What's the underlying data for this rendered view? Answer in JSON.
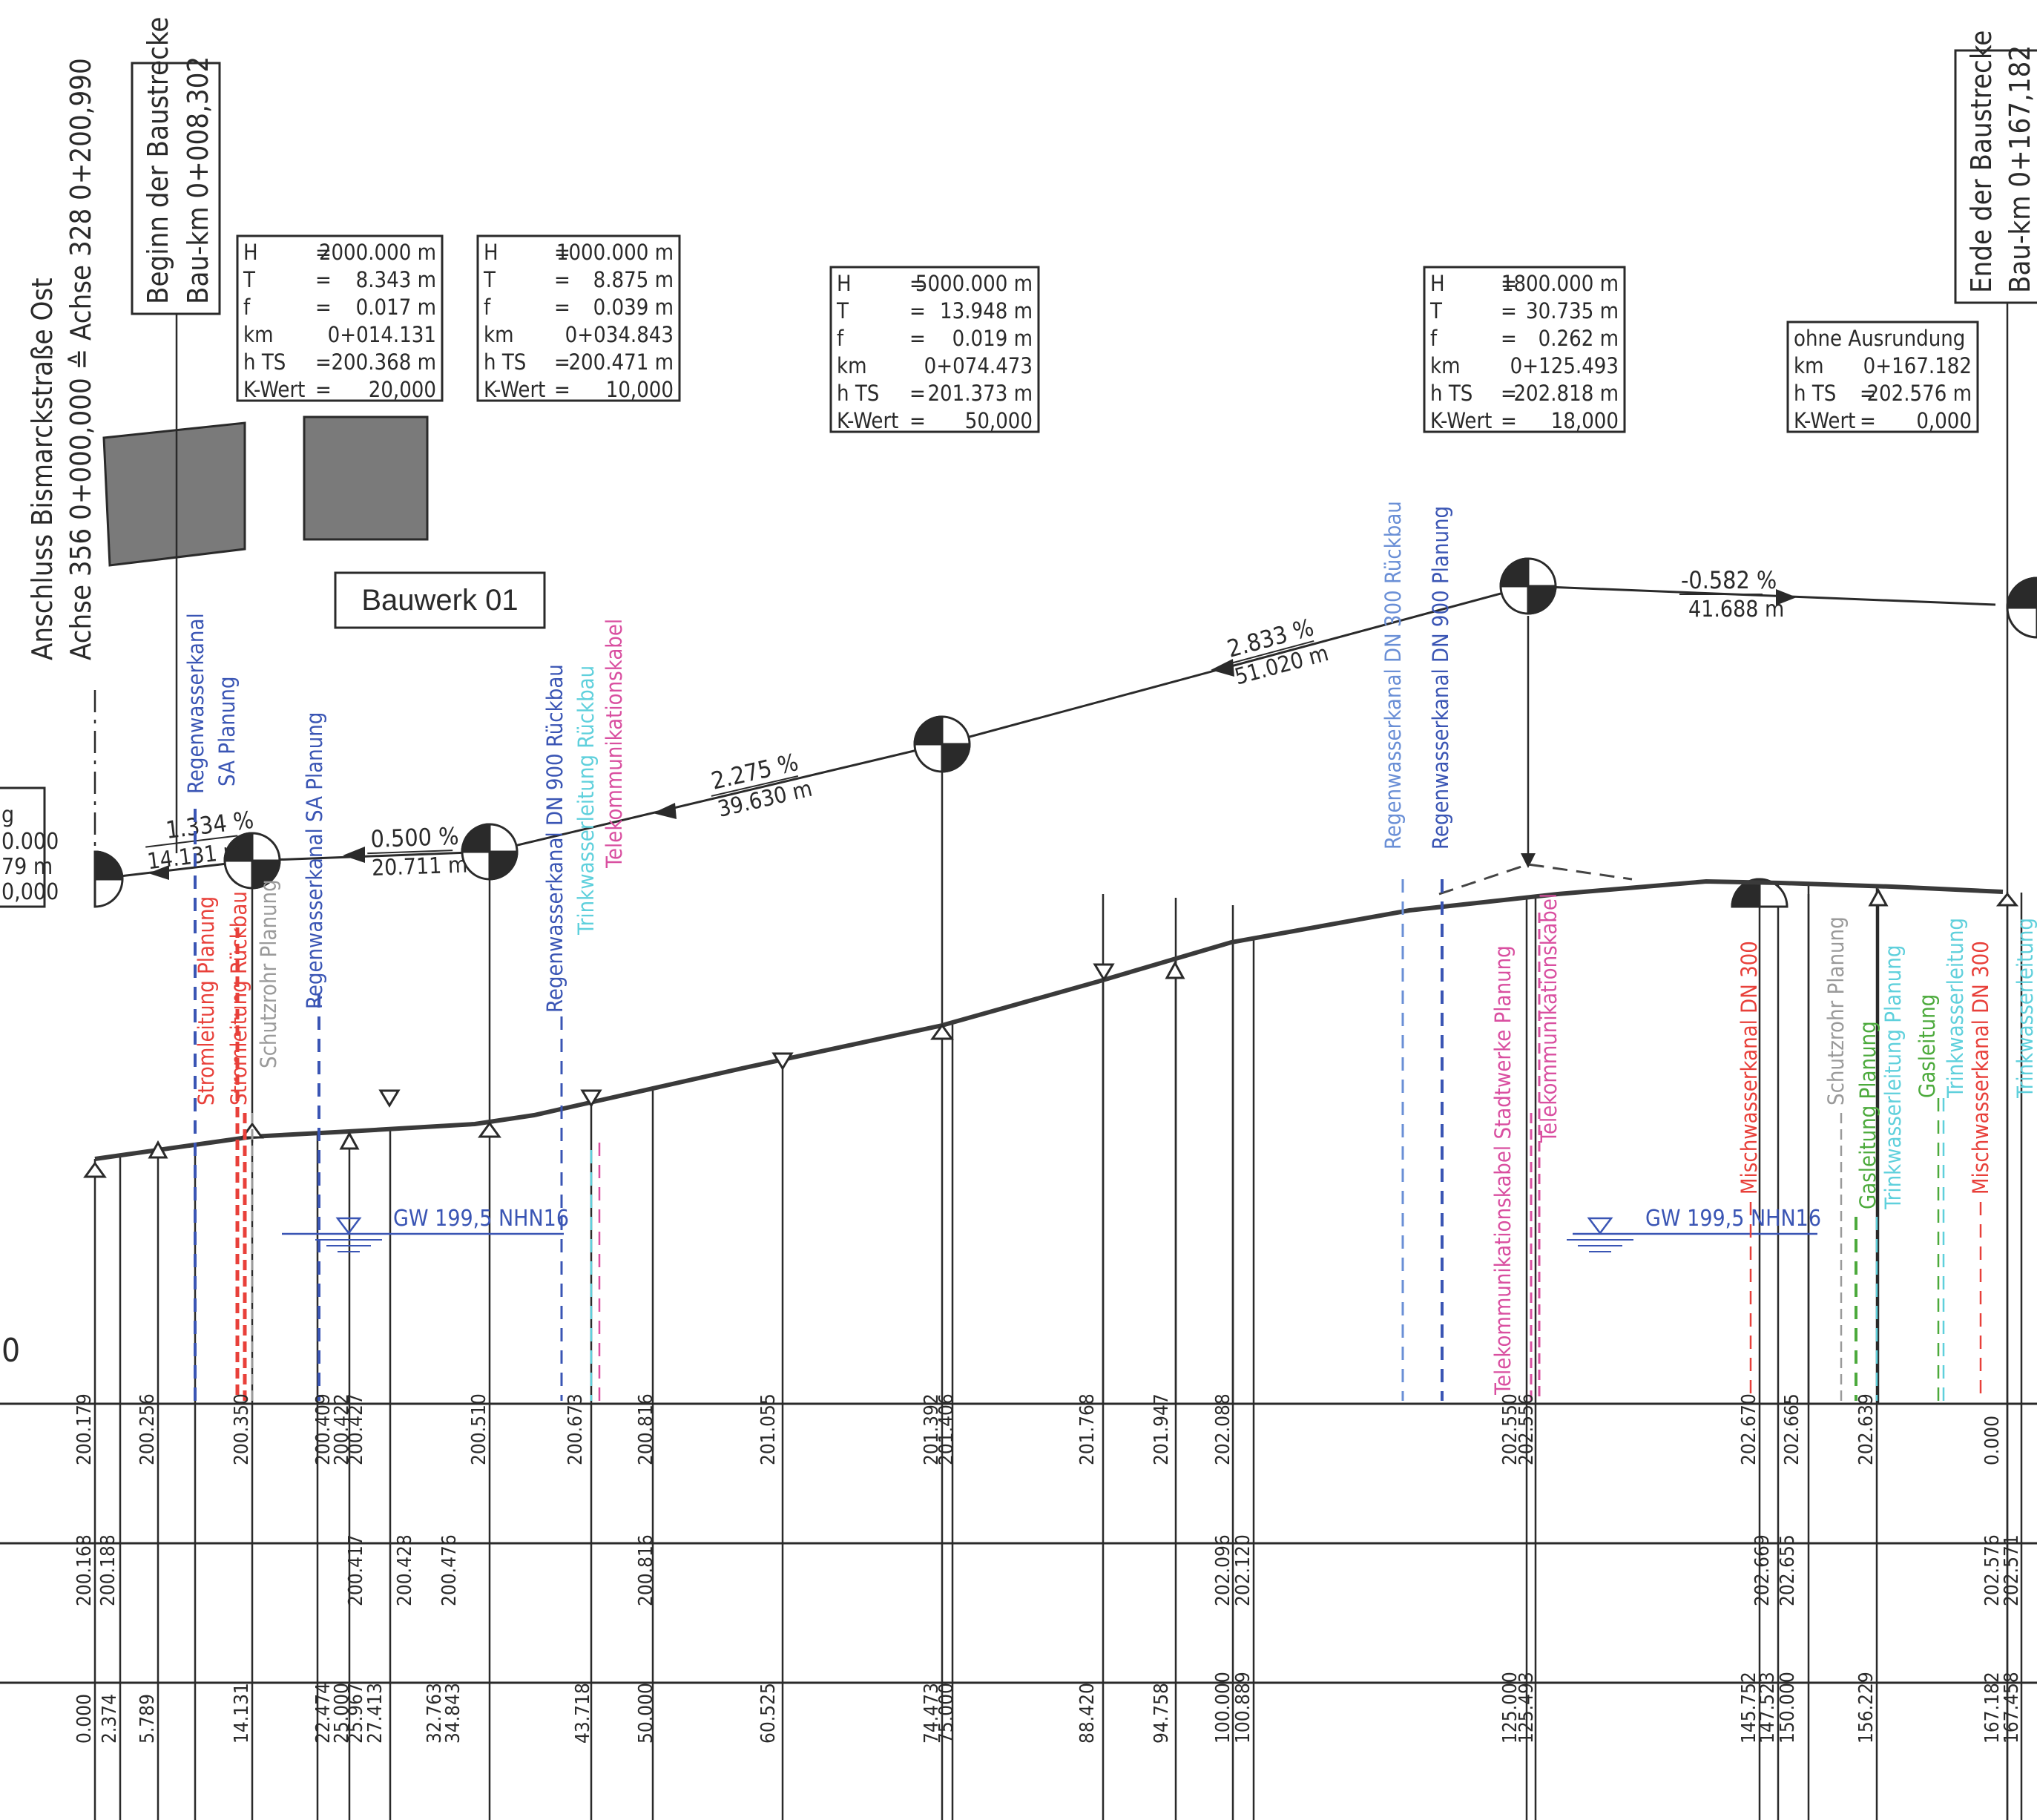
{
  "colors": {
    "ink": "#2a2a2a",
    "blue": "#3a55b4",
    "light_blue": "#6a8fd6",
    "red": "#e8403a",
    "pink": "#d94fa0",
    "cyan": "#5fd0dc",
    "green": "#4caa3c",
    "grey": "#9a9a9a",
    "building": "#7a7a7a"
  },
  "header": {
    "connection_line1": "Anschluss Bismarckstraße Ost",
    "connection_line2": "Achse 356 0+000,000 ≙ Achse 328 0+200,990",
    "begin_line1": "Beginn der Baustrecke",
    "begin_line2": "Bau-km 0+008,302",
    "end_line1": "Ende der Baustrecke",
    "end_line2": "Bau-km 0+167,182",
    "bauwerk": "Bauwerk 01"
  },
  "left_fragment": [
    "g",
    "0.000",
    "79 m",
    "0,000"
  ],
  "left_zero": "0",
  "curve_boxes": [
    {
      "rows": [
        [
          "H",
          "=",
          "2000.000 m"
        ],
        [
          "T",
          "=",
          "8.343 m"
        ],
        [
          "f",
          "=",
          "0.017 m"
        ],
        [
          "km",
          "",
          "0+014.131"
        ],
        [
          "h TS",
          "=",
          "200.368 m"
        ],
        [
          "K-Wert",
          "=",
          "20,000"
        ]
      ]
    },
    {
      "rows": [
        [
          "H",
          "=",
          "1000.000 m"
        ],
        [
          "T",
          "=",
          "8.875 m"
        ],
        [
          "f",
          "=",
          "0.039 m"
        ],
        [
          "km",
          "",
          "0+034.843"
        ],
        [
          "h TS",
          "=",
          "200.471 m"
        ],
        [
          "K-Wert",
          "=",
          "10,000"
        ]
      ]
    },
    {
      "rows": [
        [
          "H",
          "=",
          "5000.000 m"
        ],
        [
          "T",
          "=",
          "13.948 m"
        ],
        [
          "f",
          "=",
          "0.019 m"
        ],
        [
          "km",
          "",
          "0+074.473"
        ],
        [
          "h TS",
          "=",
          "201.373 m"
        ],
        [
          "K-Wert",
          "=",
          "50,000"
        ]
      ]
    },
    {
      "rows": [
        [
          "H",
          "=",
          "1800.000 m"
        ],
        [
          "T",
          "=",
          "30.735 m"
        ],
        [
          "f",
          "=",
          "0.262 m"
        ],
        [
          "km",
          "",
          "0+125.493"
        ],
        [
          "h TS",
          "=",
          "202.818 m"
        ],
        [
          "K-Wert",
          "=",
          "18,000"
        ]
      ]
    },
    {
      "title": "ohne Ausrundung",
      "rows": [
        [
          "km",
          "",
          "0+167.182"
        ],
        [
          "h TS",
          "=",
          "202.576 m"
        ],
        [
          "K-Wert",
          "=",
          "0,000"
        ]
      ]
    }
  ],
  "grades": [
    {
      "percent": "1.334 %",
      "length": "14.131 m"
    },
    {
      "percent": "0.500 %",
      "length": "20.711 m"
    },
    {
      "percent": "2.275 %",
      "length": "39.630 m"
    },
    {
      "percent": "2.833 %",
      "length": "51.020 m"
    },
    {
      "percent": "-0.582 %",
      "length": "41.688 m"
    }
  ],
  "groundwater": [
    "GW 199,5 NHN16",
    "GW 199,5 NHN16"
  ],
  "utilities": [
    {
      "label": "Regenwasserkanal",
      "color": "blue"
    },
    {
      "label": "SA Planung",
      "color": "blue"
    },
    {
      "label": "Stromleitung Planung",
      "color": "red"
    },
    {
      "label": "Stromleitung Rückbau",
      "color": "red"
    },
    {
      "label": "Schutzrohr Planung",
      "color": "grey"
    },
    {
      "label": "Regenwasserkanal SA Planung",
      "color": "blue"
    },
    {
      "label": "Regenwasserkanal DN 900 Rückbau",
      "color": "blue"
    },
    {
      "label": "Trinkwasserleitung Rückbau",
      "color": "cyan"
    },
    {
      "label": "Telekommunikationskabel",
      "color": "pink"
    },
    {
      "label": "Regenwasserkanal DN 300 Rückbau",
      "color": "light_blue"
    },
    {
      "label": "Regenwasserkanal DN 900 Planung",
      "color": "blue"
    },
    {
      "label": "Telekommunikationskabel Stadtwerke Planung",
      "color": "pink"
    },
    {
      "label": "Telekommunikationskabel",
      "color": "pink"
    },
    {
      "label": "Mischwasserkanal DN 300",
      "color": "red"
    },
    {
      "label": "Schutzrohr Planung",
      "color": "grey"
    },
    {
      "label": "Gasleitung Planung",
      "color": "green"
    },
    {
      "label": "Trinkwasserleitung Planung",
      "color": "cyan"
    },
    {
      "label": "Gasleitung",
      "color": "green"
    },
    {
      "label": "Trinkwasserleitung",
      "color": "cyan"
    },
    {
      "label": "Mischwasserkanal DN 300",
      "color": "red"
    },
    {
      "label": "Trinkwasserleitung",
      "color": "cyan"
    }
  ],
  "band_row1": [
    "200.179",
    "200.256",
    "200.350",
    "200.409",
    "200.422",
    "200.427",
    "200.510",
    "200.673",
    "200.816",
    "201.055",
    "201.392",
    "201.406",
    "201.768",
    "201.947",
    "202.088",
    "202.550",
    "202.556",
    "202.670",
    "202.665",
    "202.639",
    "0.000"
  ],
  "band_row2": [
    "200.168",
    "200.188",
    "200.417",
    "200.428",
    "200.476",
    "200.816",
    "202.096",
    "202.120",
    "202.669",
    "202.655",
    "202.576",
    "202.571"
  ],
  "band_row3": [
    "0.000",
    "2.374",
    "5.789",
    "14.131",
    "22.474",
    "25.000",
    "25.967",
    "27.413",
    "32.763",
    "34.843",
    "43.718",
    "50.000",
    "60.525",
    "74.473",
    "75.000",
    "88.420",
    "94.758",
    "100.000",
    "100.889",
    "125.000",
    "125.493",
    "145.752",
    "147.523",
    "150.000",
    "156.229",
    "167.182",
    "167.458"
  ]
}
